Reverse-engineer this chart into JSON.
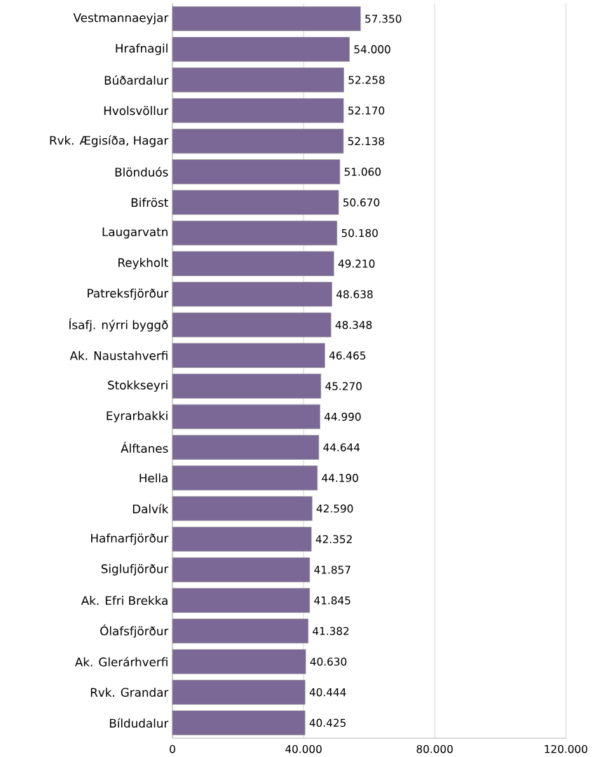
{
  "chart_data": {
    "type": "bar",
    "orientation": "horizontal",
    "categories": [
      "Vestmannaeyjar",
      "Hrafnagil",
      "Búðardalur",
      "Hvolsvöllur",
      "Rvk. Ægisíða, Hagar",
      "Blönduós",
      "Bifröst",
      "Laugarvatn",
      "Reykholt",
      "Patreksfjörður",
      "Ísafj. nýrri byggð",
      "Ak. Naustahverfi",
      "Stokkseyri",
      "Eyrarbakki",
      "Álftanes",
      "Hella",
      "Dalvík",
      "Hafnarfjörður",
      "Siglufjörður",
      "Ak. Efri Brekka",
      "Ólafsfjörður",
      "Ak. Glerárhverfi",
      "Rvk. Grandar",
      "Bíldudalur"
    ],
    "values": [
      57350,
      54000,
      52258,
      52170,
      52138,
      51060,
      50670,
      50180,
      49210,
      48638,
      48348,
      46465,
      45270,
      44990,
      44644,
      44190,
      42590,
      42352,
      41857,
      41845,
      41382,
      40630,
      40444,
      40425
    ],
    "value_labels": [
      "57.350",
      "54.000",
      "52.258",
      "52.170",
      "52.138",
      "51.060",
      "50.670",
      "50.180",
      "49.210",
      "48.638",
      "48.348",
      "46.465",
      "45.270",
      "44.990",
      "44.644",
      "44.190",
      "42.590",
      "42.352",
      "41.857",
      "41.845",
      "41.382",
      "40.630",
      "40.444",
      "40.425"
    ],
    "color": "#7b6896",
    "xlim": [
      0,
      120000
    ],
    "xticks": [
      0,
      {
        "value": 40000,
        "label": "40.000"
      },
      {
        "value": 80000,
        "label": "80.000"
      },
      {
        "value": 120000,
        "label": "120.000"
      }
    ],
    "grid": "x"
  }
}
